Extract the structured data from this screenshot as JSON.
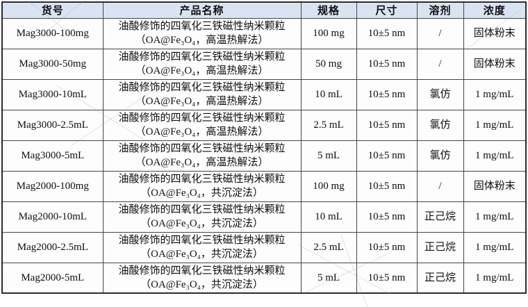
{
  "table": {
    "headers": [
      {
        "key": "sku",
        "label": "货号"
      },
      {
        "key": "product_name",
        "label": "产品名称"
      },
      {
        "key": "spec",
        "label": "规格"
      },
      {
        "key": "size",
        "label": "尺寸"
      },
      {
        "key": "solvent",
        "label": "溶剂"
      },
      {
        "key": "concentration",
        "label": "浓度"
      }
    ],
    "rows": [
      {
        "sku": "Mag3000-100mg",
        "name_line1": "油酸修饰的四氧化三铁磁性纳米颗粒",
        "name_line2": "（OA@Fe₃O₄，高温热解法）",
        "spec": "100 mg",
        "size": "10±5 nm",
        "solvent": "/",
        "concentration": "固体粉末"
      },
      {
        "sku": "Mag3000-50mg",
        "name_line1": "油酸修饰的四氧化三铁磁性纳米颗粒",
        "name_line2": "（OA@Fe₃O₄，高温热解法）",
        "spec": "50 mg",
        "size": "10±5 nm",
        "solvent": "/",
        "concentration": "固体粉末"
      },
      {
        "sku": "Mag3000-10mL",
        "name_line1": "油酸修饰的四氧化三铁磁性纳米颗粒",
        "name_line2": "（OA@Fe₃O₄，高温热解法）",
        "spec": "10 mL",
        "size": "10±5 nm",
        "solvent": "氯仿",
        "concentration": "1 mg/mL"
      },
      {
        "sku": "Mag3000-2.5mL",
        "name_line1": "油酸修饰的四氧化三铁磁性纳米颗粒",
        "name_line2": "（OA@Fe₃O₄，高温热解法）",
        "spec": "2.5 mL",
        "size": "10±5 nm",
        "solvent": "氯仿",
        "concentration": "1 mg/mL"
      },
      {
        "sku": "Mag3000-5mL",
        "name_line1": "油酸修饰的四氧化三铁磁性纳米颗粒",
        "name_line2": "（OA@Fe₃O₄，高温热解法）",
        "spec": "5 mL",
        "size": "10±5 nm",
        "solvent": "氯仿",
        "concentration": "1 mg/mL"
      },
      {
        "sku": "Mag2000-100mg",
        "name_line1": "油酸修饰的四氧化三铁磁性纳米颗粒",
        "name_line2": "（OA@Fe₃O₄，共沉淀法）",
        "spec": "100 mg",
        "size": "10±5 nm",
        "solvent": "/",
        "concentration": "固体粉末"
      },
      {
        "sku": "Mag2000-10mL",
        "name_line1": "油酸修饰的四氧化三铁磁性纳米颗粒",
        "name_line2": "（OA@Fe₃O₄，共沉淀法）",
        "spec": "10 mL",
        "size": "10±5 nm",
        "solvent": "正己烷",
        "concentration": "1 mg/mL"
      },
      {
        "sku": "Mag2000-2.5mL",
        "name_line1": "油酸修饰的四氧化三铁磁性纳米颗粒",
        "name_line2": "（OA@Fe₃O₄，共沉淀法）",
        "spec": "2.5 mL",
        "size": "10±5 nm",
        "solvent": "正己烷",
        "concentration": "1 mg/mL"
      },
      {
        "sku": "Mag2000-5mL",
        "name_line1": "油酸修饰的四氧化三铁磁性纳米颗粒",
        "name_line2": "（OA@Fe₃O₄，共沉淀法）",
        "spec": "5 mL",
        "size": "10±5 nm",
        "solvent": "正己烷",
        "concentration": "1 mg/mL"
      }
    ]
  },
  "colors": {
    "header_bg": "#dae3f1",
    "inner_border": "#454545",
    "outer_border": "#2b2b2b",
    "text": "#0e0e12"
  }
}
